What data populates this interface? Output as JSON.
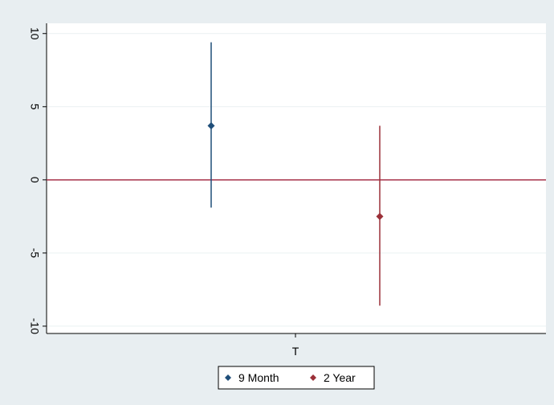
{
  "chart_data": {
    "type": "scatter",
    "title": "",
    "xlabel": "",
    "ylabel": "",
    "categories": [
      "T"
    ],
    "ylim": [
      -10.5,
      10.7
    ],
    "yticks": [
      10,
      5,
      0,
      -5,
      -10
    ],
    "ytick_labels": [
      "10",
      "5",
      "0",
      "-5",
      "-10"
    ],
    "reference_line": {
      "y": 0,
      "color": "#a8334a"
    },
    "grid": true,
    "legend_position": "bottom",
    "series": [
      {
        "name": "9 Month",
        "color": "#1f4e79",
        "estimate": 3.7,
        "ci_low": -1.9,
        "ci_high": 9.4,
        "offset": -0.5
      },
      {
        "name": "2 Year",
        "color": "#9b3038",
        "estimate": -2.5,
        "ci_low": -8.6,
        "ci_high": 3.7,
        "offset": 0.5
      }
    ]
  }
}
